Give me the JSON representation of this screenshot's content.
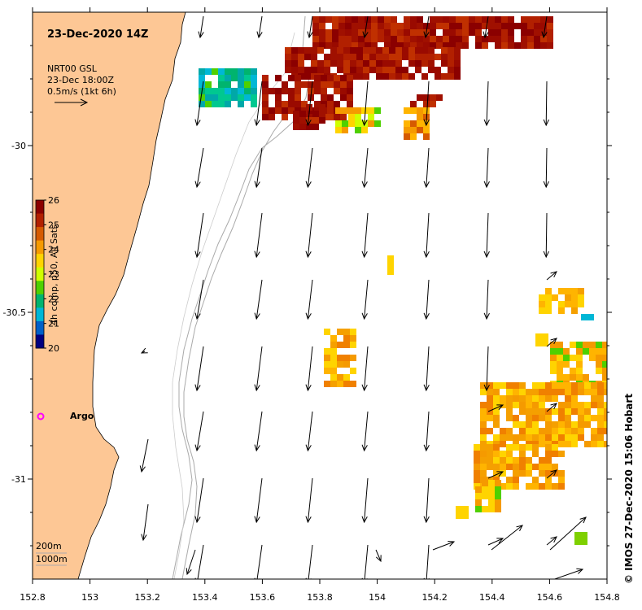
{
  "title": "23-Dec-2020 14Z",
  "current_legend": {
    "line1": "NRT00 GSL",
    "line2": "23-Dec 18:00Z",
    "line3": "0.5m/s (1kt 6h)"
  },
  "colorbar": {
    "label": "4h comp, p50, All Sats",
    "ticks": [
      "26",
      "25",
      "24",
      "23",
      "22",
      "21",
      "20"
    ],
    "colors": [
      "#8b0000",
      "#b22000",
      "#d65a00",
      "#f59a00",
      "#ffd400",
      "#d0ff00",
      "#4fd000",
      "#00b46e",
      "#00b7d6",
      "#0060c8",
      "#000080"
    ]
  },
  "argo_label": "Argo",
  "depth_legend": {
    "line1": "200m",
    "line2": "1000m"
  },
  "credit": "© IMOS 27-Dec-2020 15:06 Hobart",
  "x_axis": {
    "ticks": [
      "152.8",
      "153",
      "153.2",
      "153.4",
      "153.6",
      "153.8",
      "154",
      "154.2",
      "154.4",
      "154.6",
      "154.8"
    ]
  },
  "y_axis": {
    "ticks": [
      "-30",
      "-30.5",
      "-31"
    ]
  },
  "colors": {
    "land": "#fdc795",
    "isobath": "#aaaaaa",
    "argo": "#ff00ff"
  }
}
